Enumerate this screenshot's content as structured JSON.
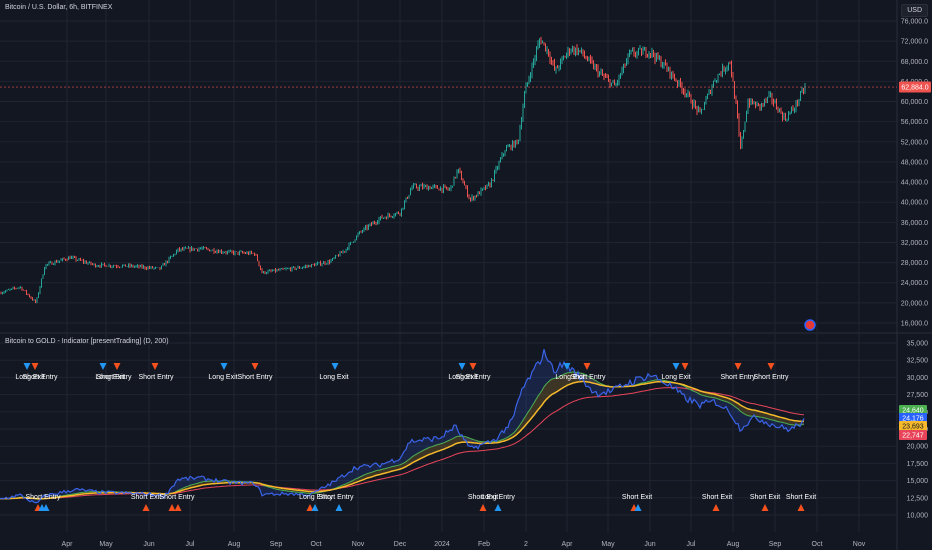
{
  "header": {
    "symbol_title": "Bitcoin / U.S. Dollar, 6h, BITFINEX",
    "currency": "USD"
  },
  "indicator": {
    "title": "Bitcoin to GOLD - Indicator [presentTrading] (D, 200)"
  },
  "colors": {
    "background": "#131722",
    "grid": "#1f2431",
    "text": "#b2b5be",
    "candle_up": "#26a69a",
    "candle_down": "#ef5350",
    "ratio_line": "#3a63e8",
    "ma_fast": "#4caf50",
    "ma_mid": "#f5b92b",
    "ma_slow": "#e8455a",
    "marker_blue": "#2196f3",
    "marker_orange": "#f4511e"
  },
  "chart_data": [
    {
      "type": "candlestick",
      "title": "Bitcoin / U.S. Dollar, 6h, BITFINEX",
      "ylim": [
        16000,
        77000
      ],
      "y_ticks": [
        76000,
        72000,
        68000,
        64000,
        60000,
        56000,
        52000,
        48000,
        44000,
        40000,
        36000,
        32000,
        28000,
        24000,
        20000,
        16000
      ],
      "y_tick_labels": [
        "76,000.0",
        "72,000.0",
        "68,000.0",
        "64,000.0",
        "60,000.0",
        "56,000.0",
        "52,000.0",
        "48,000.0",
        "44,000.0",
        "40,000.0",
        "36,000.0",
        "32,000.0",
        "28,000.0",
        "24,000.0",
        "20,000.0",
        "16,000.0"
      ],
      "last_price": 62884,
      "last_price_label": "62,884.0",
      "x_labels": [
        "Apr",
        "May",
        "Jun",
        "Jul",
        "Aug",
        "Sep",
        "Oct",
        "Nov",
        "Dec",
        "2024",
        "Feb",
        "2",
        "Apr",
        "May",
        "Jun",
        "Jul",
        "Aug",
        "Sep",
        "Oct",
        "Nov"
      ],
      "x": [
        0,
        4,
        8,
        12,
        16,
        20,
        24,
        28,
        32,
        36,
        40,
        44,
        48,
        52,
        56,
        60,
        64,
        68,
        72,
        76,
        80,
        84
      ],
      "close": [
        22000,
        23500,
        27800,
        28500,
        27200,
        26800,
        28100,
        30200,
        30100,
        29800,
        26700,
        26500,
        27200,
        34000,
        36000,
        37500,
        37300,
        42000,
        43500,
        46000,
        42500,
        45500
      ]
    },
    {
      "type": "line",
      "title": "Bitcoin to GOLD - Indicator [presentTrading] (D, 200)",
      "ylim": [
        10000,
        35000
      ],
      "y_ticks": [
        35000,
        32500,
        30000,
        27500,
        25000,
        22500,
        20000,
        17500,
        15000,
        12500,
        10000
      ],
      "y_tick_labels": [
        "35,000",
        "32,500",
        "30,000",
        "27,500",
        "25,000",
        "22,500",
        "20,000",
        "17,500",
        "15,000",
        "12,500",
        "10,000"
      ],
      "last_value_labels": [
        "24,640",
        "24,176",
        "23,693",
        "22,747"
      ],
      "signals_top": [
        "Long Exit",
        "Long Exit",
        "Short Entry",
        "Short Entry",
        "Long Exit",
        "Short Entry",
        "Long Exit",
        "Long Exit",
        "Short Entry",
        "Long Exit",
        "Short Entry",
        "Long Exit",
        "Short Entry",
        "Short Entry"
      ],
      "signals_bottom": [
        "Short Entry",
        "Short Exit",
        "Short Entry",
        "Short Exit",
        "Long Entry",
        "Short Exit",
        "Long Entry",
        "Short Entry",
        "Short Exit",
        "Short Exit",
        "Short Exit"
      ]
    }
  ]
}
